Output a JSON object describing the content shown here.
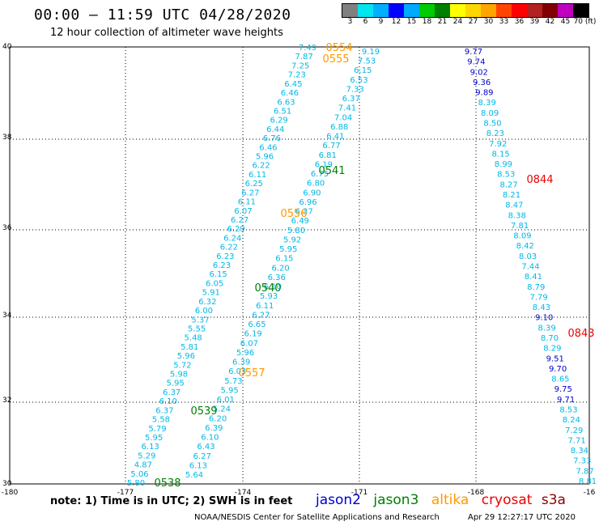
{
  "header": {
    "title": "00:00 – 11:59 UTC 04/28/2020",
    "subtitle": "12 hour collection of altimeter wave heights"
  },
  "color_scale": {
    "labels": [
      "3",
      "6",
      "9",
      "12",
      "15",
      "18",
      "21",
      "24",
      "27",
      "30",
      "33",
      "36",
      "39",
      "42",
      "45",
      "70 (ft)"
    ],
    "colors": [
      "#808080",
      "#00e5ee",
      "#00b0ff",
      "#0000ff",
      "#00aaff",
      "#00cc00",
      "#008000",
      "#ffff00",
      "#ffd700",
      "#ffa500",
      "#ff4500",
      "#ff0000",
      "#b22222",
      "#800000",
      "#c000c0",
      "#000000"
    ]
  },
  "map": {
    "lon_labels": [
      "-180",
      "-177",
      "-174",
      "-171",
      "-168",
      "-16"
    ],
    "lat_labels": [
      "40",
      "38",
      "36",
      "34",
      "32",
      "30"
    ]
  },
  "tracks": [
    {
      "name": "A",
      "color": "#00b8e8",
      "values": [
        "7.49",
        "7.87",
        "7.25",
        "7.23",
        "6.45",
        "6.46",
        "6.63",
        "6.51",
        "6.29",
        "6.44",
        "6.76",
        "6.46",
        "5.96",
        "6.22",
        "6.11",
        "6.25",
        "6.27",
        "6.11",
        "6.07",
        "6.27",
        "6.29",
        "6.24",
        "6.22",
        "6.23",
        "6.23",
        "6.15",
        "6.05",
        "5.91",
        "6.32",
        "6.00",
        "5.37",
        "5.55",
        "5.48",
        "5.81",
        "5.96",
        "5.72",
        "5.98",
        "5.95",
        "6.37",
        "6.10",
        "6.37",
        "5.58",
        "5.79",
        "5.95",
        "6.13",
        "5.29",
        "4.87",
        "5.06",
        "5.80"
      ]
    },
    {
      "name": "B",
      "color": "#00b8e8",
      "values": [
        "9.19",
        "7.53",
        "6.15",
        "6.53",
        "7.33",
        "6.37",
        "7.41",
        "7.04",
        "6.88",
        "6.41",
        "6.77",
        "6.81",
        "6.19",
        "6.75",
        "6.80",
        "6.90",
        "6.96",
        "6.37",
        "6.49",
        "5.80",
        "5.92",
        "5.95",
        "6.15",
        "6.20",
        "6.36",
        "6.10",
        "5.93",
        "6.11",
        "6.27",
        "6.65",
        "6.19",
        "6.07",
        "5.96",
        "6.39",
        "6.03",
        "5.73",
        "5.95",
        "6.01",
        "5.24",
        "6.20",
        "6.39",
        "6.10",
        "6.43",
        "6.27",
        "6.13",
        "5.64"
      ]
    },
    {
      "name": "C",
      "values": [
        "9.77",
        "9.74",
        "9.02",
        "9.36",
        "9.89",
        "8.39",
        "8.09",
        "8.50",
        "8.23",
        "7.92",
        "8.15",
        "8.99",
        "8.53",
        "8.27",
        "8.21",
        "8.47",
        "8.38",
        "7.81",
        "8.09",
        "8.42",
        "8.03",
        "7.44",
        "8.41",
        "8.79",
        "7.79",
        "8.43",
        "9.10",
        "8.39",
        "8.70",
        "8.29",
        "9.51",
        "9.70",
        "8.65",
        "9.75",
        "9.71",
        "8.53",
        "8.24",
        "7.29",
        "7.71",
        "8.34",
        "7.33",
        "7.87",
        "8.81"
      ],
      "highlight": [
        "9.77",
        "9.74",
        "9.02",
        "9.36",
        "9.89",
        "9.10",
        "9.51",
        "9.70",
        "9.75",
        "9.71"
      ]
    }
  ],
  "pass_labels": [
    {
      "text": "0554",
      "sat": "altika"
    },
    {
      "text": "0555",
      "sat": "altika"
    },
    {
      "text": "0541",
      "sat": "jason3"
    },
    {
      "text": "0844",
      "sat": "cryosat"
    },
    {
      "text": "0556",
      "sat": "altika"
    },
    {
      "text": "0540",
      "sat": "jason3"
    },
    {
      "text": "0843",
      "sat": "cryosat"
    },
    {
      "text": "0557",
      "sat": "altika"
    },
    {
      "text": "0539",
      "sat": "jason3"
    },
    {
      "text": "0538",
      "sat": "jason3"
    }
  ],
  "legend_colors": {
    "jason2": "#0000cc",
    "jason3": "#008000",
    "altika": "#ff9900",
    "cryosat": "#ee0000",
    "s3a": "#8b0000"
  },
  "legend": {
    "jason2": "jason2",
    "jason3": "jason3",
    "altika": "altika",
    "cryosat": "cryosat",
    "s3a": "s3a"
  },
  "footer": {
    "note": "note: 1) Time is in UTC; 2) SWH is in feet",
    "credit": "NOAA/NESDIS Center for Satellite Applications and Research",
    "timestamp": "Apr 29 12:27:17 UTC 2020"
  }
}
